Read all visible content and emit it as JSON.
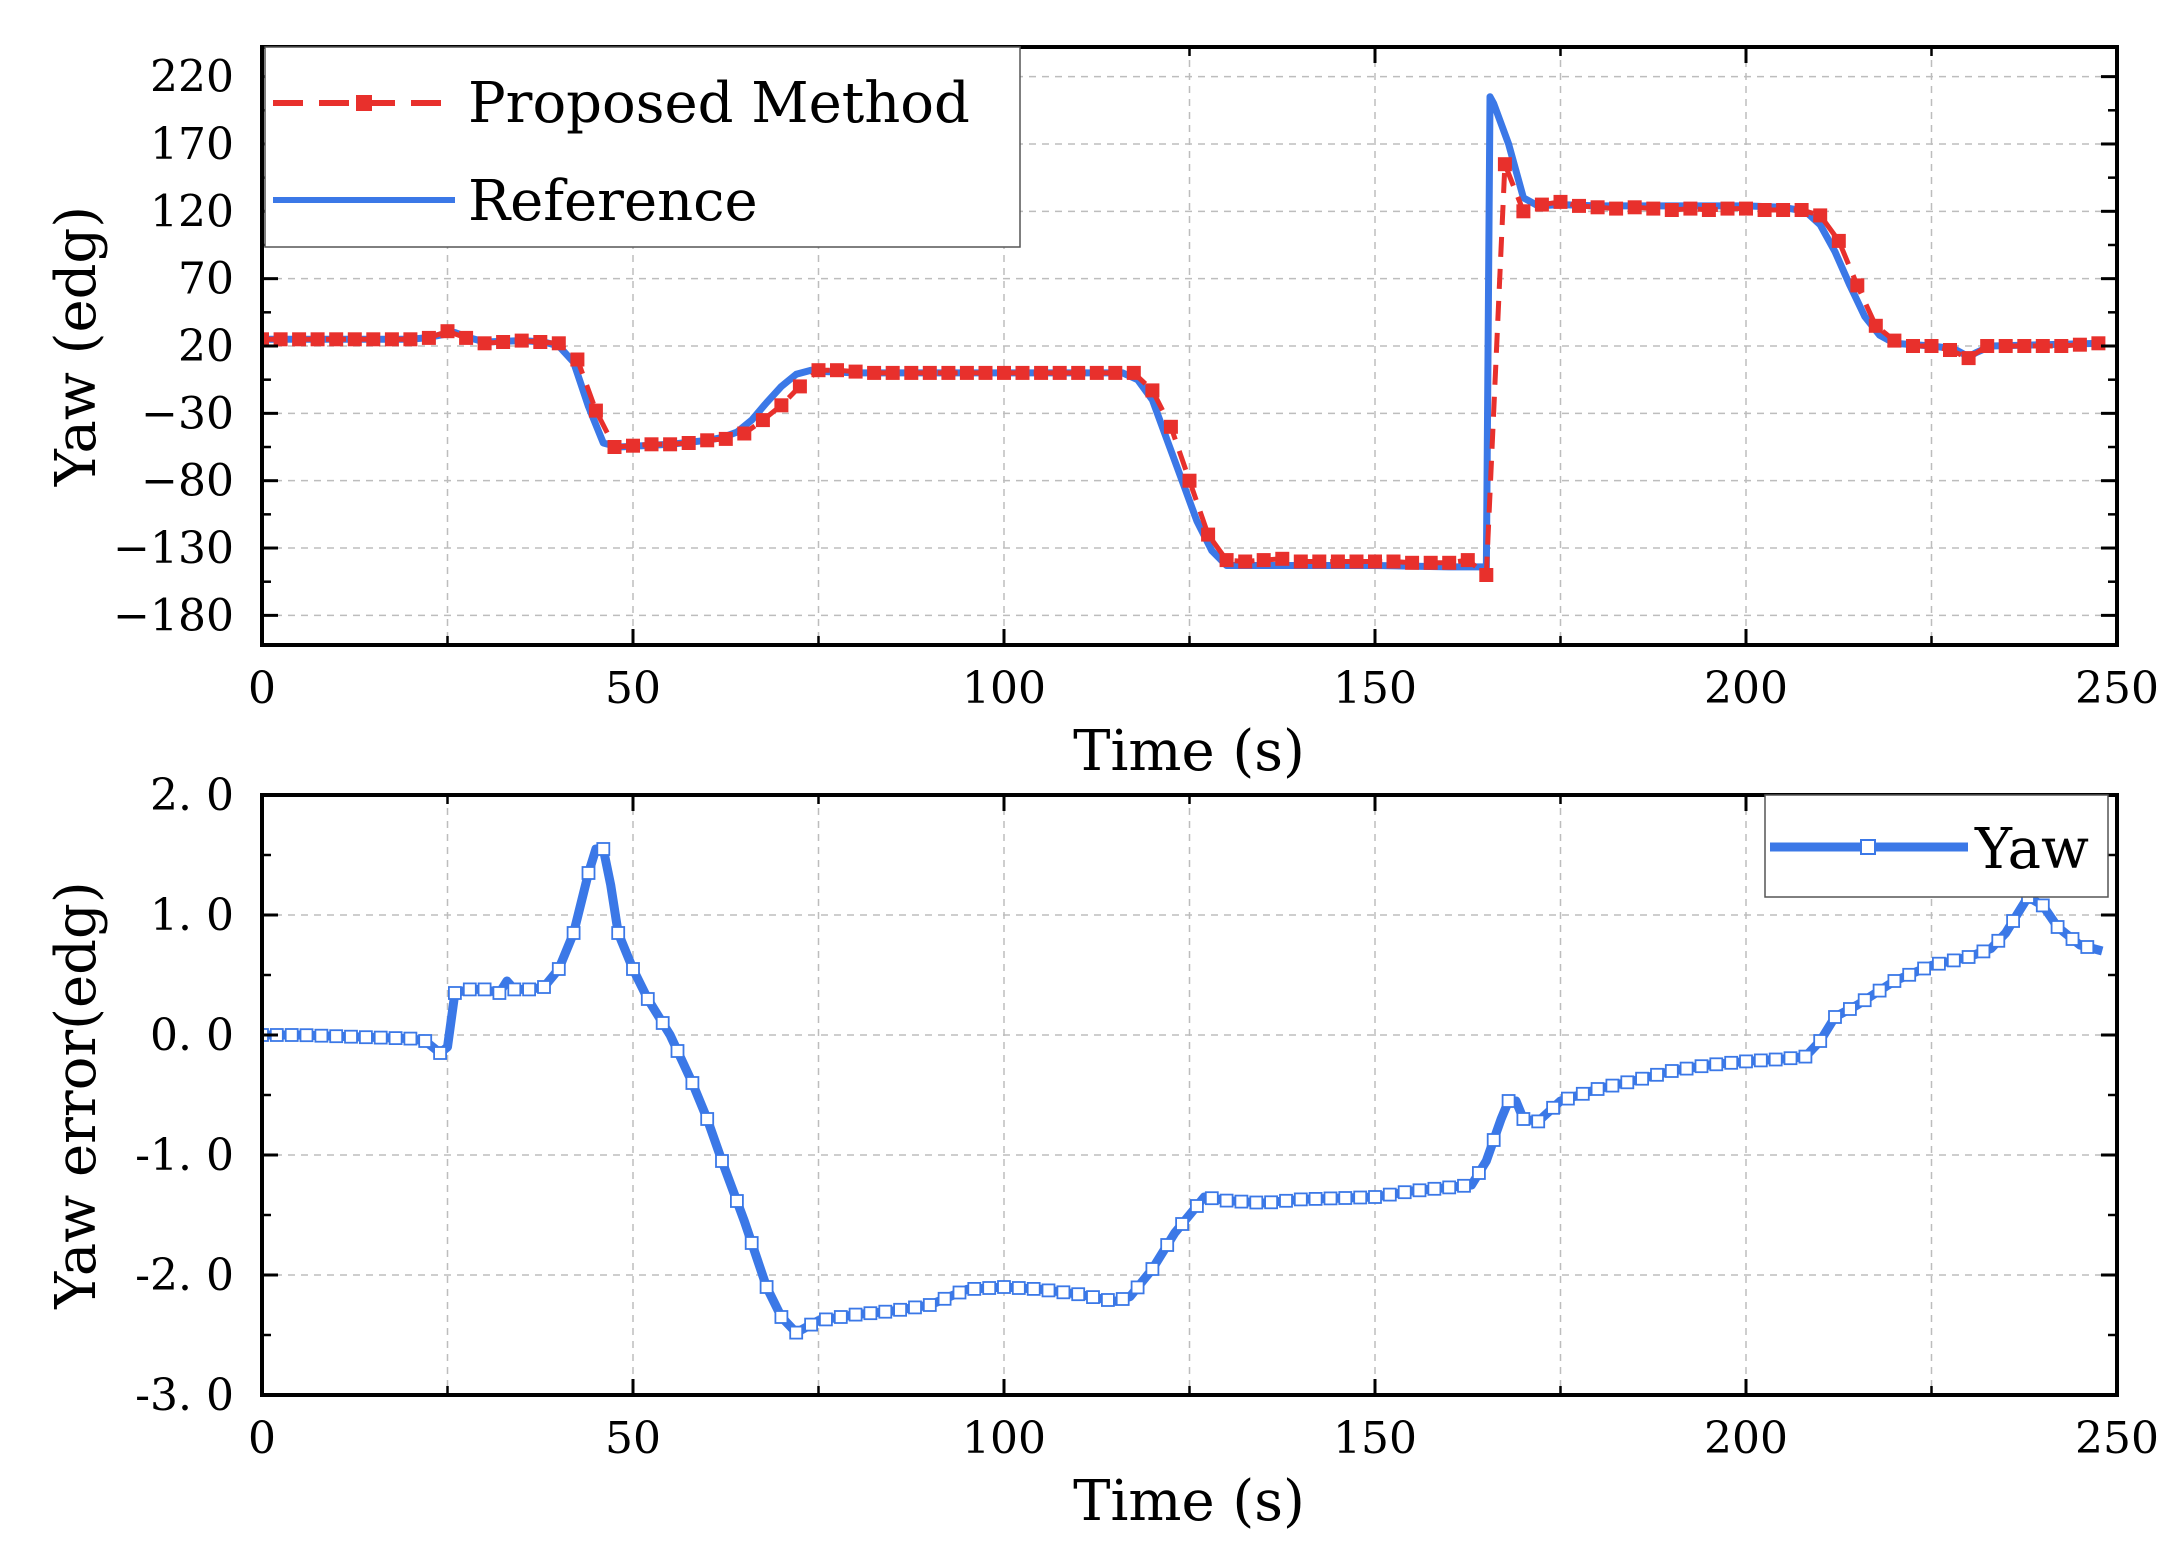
{
  "chart_data": [
    {
      "type": "line",
      "xlabel": "Time (s)",
      "ylabel": "Yaw (edg)",
      "xlim": [
        0,
        250
      ],
      "ylim": [
        -202,
        242
      ],
      "xticks": [
        0,
        50,
        100,
        150,
        200,
        250
      ],
      "xtick_labels": [
        "0",
        "50",
        "100",
        "150",
        "200",
        "250"
      ],
      "yticks": [
        220,
        170,
        120,
        70,
        20,
        -30,
        -80,
        -130,
        -180
      ],
      "ytick_labels": [
        "220",
        "170",
        "120",
        "70",
        "20",
        "−30",
        "−80",
        "−130",
        "−180"
      ],
      "grid": true,
      "legend_position": "top-left",
      "series": [
        {
          "name": "Reference",
          "color": "#3b78e7",
          "style": "solid",
          "x": [
            0,
            10,
            20,
            22,
            24,
            26,
            28,
            30,
            35,
            38,
            40,
            42,
            44,
            46,
            48,
            55,
            60,
            62,
            64,
            66,
            68,
            70,
            72,
            74,
            76,
            80,
            90,
            100,
            110,
            116,
            118,
            120,
            122,
            124,
            126,
            128,
            130,
            140,
            150,
            160,
            163,
            164.5,
            165,
            165.5,
            166,
            168,
            170,
            172,
            175,
            180,
            190,
            200,
            205,
            208,
            210,
            212,
            214,
            216,
            218,
            220,
            225,
            228,
            229,
            230,
            231,
            233,
            240,
            248
          ],
          "values": [
            25,
            25,
            25,
            26,
            28,
            30,
            26,
            23,
            24,
            23,
            20,
            8,
            -25,
            -52,
            -55,
            -53,
            -50,
            -48,
            -44,
            -35,
            -22,
            -10,
            -1,
            2,
            1,
            0,
            0,
            0,
            0,
            0,
            -5,
            -20,
            -50,
            -80,
            -110,
            -132,
            -143,
            -143,
            -143,
            -144,
            -144,
            -144,
            -150,
            205,
            200,
            170,
            130,
            124,
            125,
            124,
            124,
            124,
            123,
            120,
            110,
            90,
            65,
            42,
            28,
            22,
            20,
            18,
            15,
            12,
            15,
            20,
            21,
            22
          ]
        },
        {
          "name": "Proposed Method",
          "color": "#e8302c",
          "style": "dashed",
          "marker": "square",
          "x": [
            0,
            2.5,
            5,
            7.5,
            10,
            12.5,
            15,
            17.5,
            20,
            22.5,
            25,
            27.5,
            30,
            32.5,
            35,
            37.5,
            40,
            42.5,
            45,
            47.5,
            50,
            52.5,
            55,
            57.5,
            60,
            62.5,
            65,
            67.5,
            70,
            72.5,
            75,
            77.5,
            80,
            82.5,
            85,
            87.5,
            90,
            92.5,
            95,
            97.5,
            100,
            102.5,
            105,
            107.5,
            110,
            112.5,
            115,
            117.5,
            120,
            122.5,
            125,
            127.5,
            130,
            132.5,
            135,
            137.5,
            140,
            142.5,
            145,
            147.5,
            150,
            152.5,
            155,
            157.5,
            160,
            162.5,
            165,
            167.5,
            170,
            172.5,
            175,
            177.5,
            180,
            182.5,
            185,
            187.5,
            190,
            192.5,
            195,
            197.5,
            200,
            202.5,
            205,
            207.5,
            210,
            212.5,
            215,
            217.5,
            220,
            222.5,
            225,
            227.5,
            230,
            232.5,
            235,
            237.5,
            240,
            242.5,
            245,
            247.5
          ],
          "values": [
            25,
            25,
            25,
            25,
            25,
            25,
            25,
            25,
            25,
            26,
            31,
            26,
            22,
            23,
            24,
            23,
            22,
            10,
            -28,
            -55,
            -54,
            -53,
            -53,
            -52,
            -50,
            -49,
            -45,
            -35,
            -24,
            -10,
            2,
            2,
            1,
            0,
            0,
            0,
            0,
            0,
            0,
            0,
            0,
            0,
            0,
            0,
            0,
            0,
            0,
            0,
            -13,
            -40,
            -80,
            -120,
            -139,
            -140,
            -139,
            -138,
            -140,
            -140,
            -140,
            -140,
            -140,
            -140,
            -141,
            -141,
            -141,
            -139,
            -150,
            155,
            120,
            125,
            127,
            124,
            123,
            122,
            123,
            122,
            121,
            122,
            121,
            122,
            122,
            121,
            121,
            121,
            117,
            98,
            65,
            35,
            24,
            20,
            20,
            17,
            11,
            20,
            20,
            20,
            20,
            20,
            21,
            22
          ]
        }
      ]
    },
    {
      "type": "line",
      "xlabel": "Time (s)",
      "ylabel": "Yaw error(edg)",
      "xlim": [
        0,
        250
      ],
      "ylim": [
        -3.0,
        2.0
      ],
      "xticks": [
        0,
        50,
        100,
        150,
        200,
        250
      ],
      "xtick_labels": [
        "0",
        "50",
        "100",
        "150",
        "200",
        "250"
      ],
      "yticks": [
        2.0,
        1.0,
        0.0,
        -1.0,
        -2.0,
        -3.0
      ],
      "ytick_labels": [
        "2. 0",
        "1. 0",
        "0. 0",
        "-1. 0",
        "-2. 0",
        "-3. 0"
      ],
      "grid": true,
      "legend_position": "top-right",
      "series": [
        {
          "name": "Yaw",
          "color": "#3b78e7",
          "style": "solid",
          "marker": "open-square",
          "x": [
            0,
            5,
            10,
            15,
            20,
            22,
            24,
            25,
            26,
            28,
            30,
            32,
            33,
            34,
            36,
            38,
            40,
            42,
            44,
            45,
            46,
            47,
            48,
            50,
            52,
            55,
            58,
            60,
            62,
            65,
            68,
            70,
            72,
            75,
            80,
            85,
            90,
            95,
            100,
            105,
            110,
            115,
            117,
            120,
            123,
            125,
            127,
            130,
            135,
            140,
            145,
            150,
            155,
            160,
            163,
            165,
            167,
            168,
            169,
            170,
            172,
            175,
            180,
            185,
            190,
            195,
            200,
            205,
            208,
            210,
            212,
            215,
            220,
            225,
            230,
            233,
            235,
            237,
            238,
            240,
            242,
            245,
            248
          ],
          "values": [
            0.0,
            0.0,
            -0.01,
            -0.02,
            -0.03,
            -0.05,
            -0.15,
            -0.1,
            0.35,
            0.38,
            0.38,
            0.35,
            0.45,
            0.38,
            0.38,
            0.4,
            0.55,
            0.85,
            1.35,
            1.55,
            1.55,
            1.25,
            0.85,
            0.55,
            0.3,
            0.0,
            -0.4,
            -0.7,
            -1.05,
            -1.55,
            -2.1,
            -2.35,
            -2.48,
            -2.38,
            -2.33,
            -2.3,
            -2.25,
            -2.12,
            -2.1,
            -2.12,
            -2.16,
            -2.22,
            -2.18,
            -1.95,
            -1.65,
            -1.5,
            -1.35,
            -1.38,
            -1.4,
            -1.37,
            -1.36,
            -1.35,
            -1.3,
            -1.27,
            -1.25,
            -1.05,
            -0.7,
            -0.55,
            -0.55,
            -0.7,
            -0.72,
            -0.55,
            -0.45,
            -0.38,
            -0.3,
            -0.25,
            -0.22,
            -0.2,
            -0.18,
            -0.05,
            0.15,
            0.25,
            0.45,
            0.58,
            0.65,
            0.72,
            0.85,
            1.05,
            1.15,
            1.08,
            0.9,
            0.75,
            0.7
          ]
        }
      ]
    }
  ]
}
